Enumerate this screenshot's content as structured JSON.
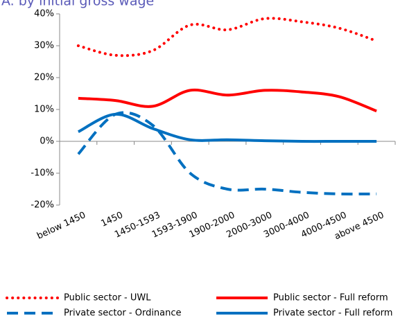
{
  "chart_data": {
    "type": "line",
    "title": "A. by initial gross wage",
    "categories": [
      "below 1450",
      "1450",
      "1450-1593",
      "1593-1900",
      "1900-2000",
      "2000-3000",
      "3000-4000",
      "4000-4500",
      "above 4500"
    ],
    "series": [
      {
        "name": "Public sector  - UWL",
        "color": "#ff0000",
        "dash": "dotted",
        "values": [
          30,
          27,
          28.5,
          36.5,
          35,
          38.5,
          37.5,
          35.5,
          31.5
        ]
      },
      {
        "name": "Public sector  - Full reform",
        "color": "#ff0000",
        "dash": "solid",
        "values": [
          13.5,
          12.8,
          11,
          16,
          14.5,
          16,
          15.5,
          14,
          9.5
        ]
      },
      {
        "name": "Private sector  - Ordinance",
        "color": "#0070c0",
        "dash": "dashed",
        "values": [
          -4,
          8.5,
          5,
          -10,
          -15,
          -15,
          -16,
          -16.5,
          -16.5
        ]
      },
      {
        "name": "Private sector  - Full reform",
        "color": "#0070c0",
        "dash": "solid",
        "values": [
          3,
          8.5,
          4,
          0.5,
          0.5,
          0.2,
          0,
          0,
          0
        ]
      }
    ],
    "ylim": [
      -20,
      40
    ],
    "yticks": [
      {
        "value": -20,
        "label": "-20%"
      },
      {
        "value": -10,
        "label": "-10%"
      },
      {
        "value": 0,
        "label": "0%"
      },
      {
        "value": 10,
        "label": "10%"
      },
      {
        "value": 20,
        "label": "20%"
      },
      {
        "value": 30,
        "label": "30%"
      },
      {
        "value": 40,
        "label": "40%"
      }
    ],
    "grid": false,
    "legend": "bottom"
  }
}
